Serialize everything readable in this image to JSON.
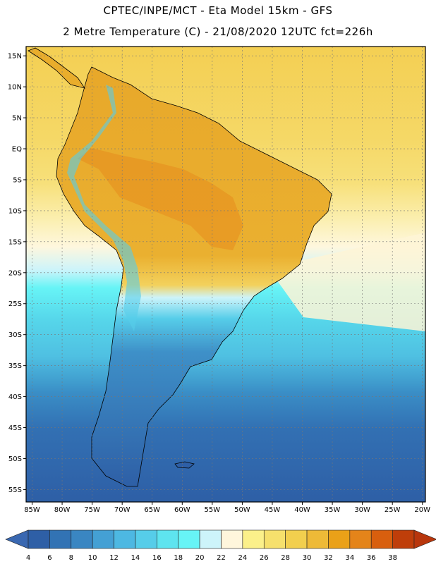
{
  "header": {
    "line1": "CPTEC/INPE/MCT -  Eta Model 15km - GFS",
    "line2": "2 Metre Temperature (C) - 21/08/2020 12UTC fct=226h"
  },
  "map": {
    "lat_labels": [
      "15N",
      "10N",
      "5N",
      "EQ",
      "5S",
      "10S",
      "15S",
      "20S",
      "25S",
      "30S",
      "35S",
      "40S",
      "45S",
      "50S",
      "55S"
    ],
    "lon_labels": [
      "85W",
      "80W",
      "75W",
      "70W",
      "65W",
      "60W",
      "55W",
      "50W",
      "45W",
      "40W",
      "35W",
      "30W",
      "25W",
      "20W"
    ],
    "lat_range": [
      -57,
      16.5
    ],
    "lon_range": [
      -86,
      -19.5
    ],
    "land_color": "#e9ad2c",
    "ocean_warm_color": "#f6d35a"
  },
  "colorbar": {
    "labels": [
      "4",
      "6",
      "8",
      "10",
      "12",
      "14",
      "16",
      "18",
      "20",
      "22",
      "24",
      "26",
      "28",
      "30",
      "32",
      "34",
      "36",
      "38"
    ],
    "colors": [
      "#2e5fa6",
      "#3273b4",
      "#3a86c2",
      "#44a0d4",
      "#4db8e2",
      "#56cde9",
      "#5ee4ef",
      "#67f4f6",
      "#cdf4fa",
      "#fff6dc",
      "#fbf08a",
      "#f6e06c",
      "#f2cf4e",
      "#eeba37",
      "#eaa118",
      "#e4841a",
      "#d85f0e",
      "#bf3e0a"
    ],
    "left_arrow_color": "#3a68b1",
    "right_arrow_color": "#b8360c"
  }
}
